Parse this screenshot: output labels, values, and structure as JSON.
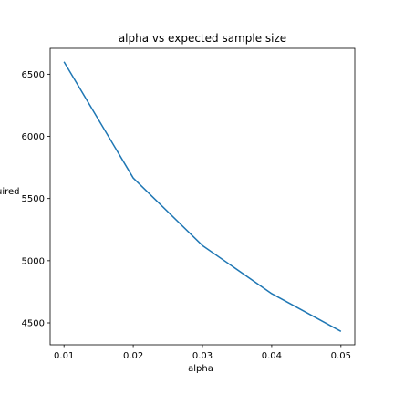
{
  "chart_data": {
    "type": "line",
    "title": "alpha vs expected sample size",
    "xlabel": "alpha",
    "ylabel": "uired",
    "x": [
      0.01,
      0.02,
      0.03,
      0.04,
      0.05
    ],
    "x_ticks": [
      "0.01",
      "0.02",
      "0.03",
      "0.04",
      "0.05"
    ],
    "y_ticks": [
      "4500",
      "5000",
      "5500",
      "6000",
      "6500"
    ],
    "series": [
      {
        "values": [
          6600,
          5665,
          5122,
          4735,
          4432
        ],
        "color": "#1f77b4"
      }
    ],
    "xlim": [
      0.008,
      0.052
    ],
    "ylim": [
      4324,
      6708
    ],
    "grid": false,
    "legend": "none"
  }
}
